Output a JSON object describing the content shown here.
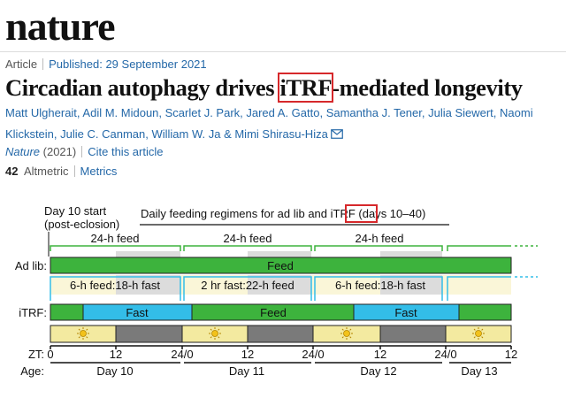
{
  "header": {
    "logo": "nature"
  },
  "article_meta": {
    "type": "Article",
    "published": "Published: 29 September 2021"
  },
  "title": {
    "before": "Circadian autophagy drives ",
    "highlight": "iTRF",
    "after": "-mediated longevity"
  },
  "authors": {
    "line1": "Matt Ulgherait, Adil M. Midoun, Scarlet J. Park, Jared A. Gatto, Samantha J. Tener, Julia Siewert, Naomi",
    "line2": "Klickstein, Julie C. Canman, William W. Ja & Mimi Shirasu-Hiza"
  },
  "journal": {
    "name": "Nature",
    "year": " (2021)",
    "cite": "Cite this article"
  },
  "stats": {
    "altmetric_count": "42",
    "altmetric_label": "Altmetric",
    "metrics_label": "Metrics"
  },
  "figure": {
    "start_line1": "Day 10 start",
    "start_line2": "(post-eclosion)",
    "regimen_before": "Daily feeding regimens for ad lib and ",
    "regimen_highlight": "iTRF",
    "regimen_after": " (days 10–40)",
    "feed_24h": "24-h feed",
    "adlib_label": "Ad lib:",
    "adlib_bar": "Feed",
    "fast_6_18": "6-h feed:18-h fast",
    "fast_2_22": "2 hr fast:22-h feed",
    "itrf_label": "iTRF:",
    "fast_bar": "Fast",
    "feed_bar": "Feed",
    "zt_label": "ZT:",
    "age_label": "Age:",
    "zt_ticks": [
      "0",
      "12",
      "24/0",
      "12",
      "24/0",
      "12",
      "24/0",
      "12"
    ],
    "days": [
      "Day 10",
      "Day 11",
      "Day 12",
      "Day 13"
    ],
    "colors": {
      "feed": "#3db33d",
      "fast": "#33bde8",
      "light": "#f3eaa0",
      "dark": "#7a7a7a",
      "grey": "#dcdcdc",
      "highlight": "#d6282b"
    }
  }
}
